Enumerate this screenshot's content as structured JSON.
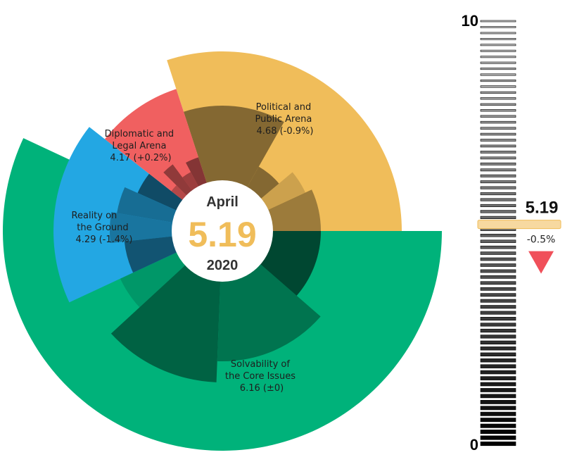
{
  "chart_data": {
    "type": "radial-bar",
    "center": {
      "month": "April",
      "value": "5.19",
      "year": "2020"
    },
    "categories": [
      {
        "name": "Political and Public Arena",
        "label_lines": [
          "Political and",
          "Public Arena"
        ],
        "value_text": "4.68 (-0.9%)",
        "value": 4.68,
        "change": "-0.9%",
        "color": "#f0bd5a"
      },
      {
        "name": "Solvability of the Core Issues",
        "label_lines": [
          "Solvability of",
          "the Core Issues"
        ],
        "value_text": "6.16 (±0)",
        "value": 6.16,
        "change": "±0",
        "color": "#00b27a"
      },
      {
        "name": "Reality on the Ground",
        "label_lines": [
          "Reality on",
          "the Ground"
        ],
        "value_text": "4.29 (-1.4%)",
        "value": 4.29,
        "change": "-1.4%",
        "color": "#23a7e3"
      },
      {
        "name": "Diplomatic and Legal Arena",
        "label_lines": [
          "Diplomatic and",
          "Legal Arena"
        ],
        "value_text": "4.17 (+0.2%)",
        "value": 4.17,
        "change": "+0.2%",
        "color": "#f06060"
      }
    ],
    "scale": {
      "min": 0,
      "max": 10,
      "min_label": "0",
      "max_label": "10",
      "current_value": 5.19,
      "current_label": "5.19",
      "change_label": "-0.5%",
      "direction": "down",
      "marker_color": "#f7d9a0",
      "arrow_color": "#f0505a"
    }
  }
}
